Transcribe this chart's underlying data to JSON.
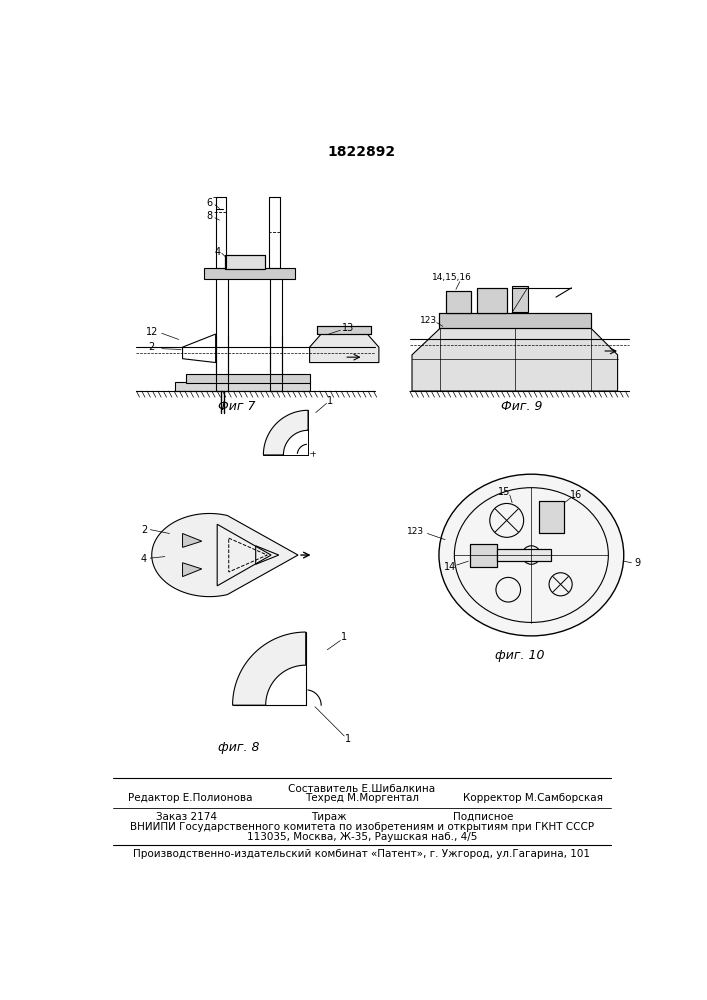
{
  "patent_number": "1822892",
  "fig7_label": "Фиг 7",
  "fig8_label": "фиг. 8",
  "fig9_label": "Фиг. 9",
  "fig10_label": "фиг. 10",
  "footer_line1_center": "Составитель Е.Шибалкина",
  "footer_line1b_center": "Техред М.Моргентал",
  "footer_line1_left": "Редактор Е.Полионова",
  "footer_line1_right": "Корректор М.Самборская",
  "footer_line2_left": "Заказ 2174",
  "footer_line2_center": "Тираж",
  "footer_line2_right": "Подписное",
  "footer_line3": "ВНИИПИ Государственного комитета по изобретениям и открытиям при ГКНТ СССР",
  "footer_line4": "113035, Москва, Ж-35, Раушская наб., 4/5",
  "footer_line5": "Производственно-издательский комбинат «Патент», г. Ужгород, ул.Гагарина, 101",
  "bg_color": "#ffffff",
  "line_color": "#000000"
}
